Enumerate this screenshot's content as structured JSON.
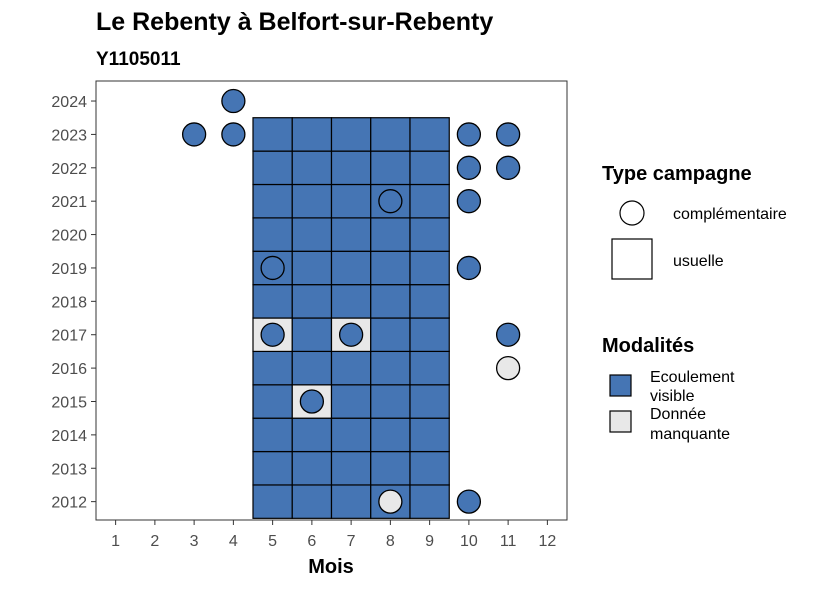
{
  "chart_data": {
    "type": "heatmap",
    "title": "Le Rebenty à Belfort-sur-Rebenty",
    "subtitle": "Y1105011",
    "xlabel": "Mois",
    "ylabel": "",
    "x_ticks": [
      1,
      2,
      3,
      4,
      5,
      6,
      7,
      8,
      9,
      10,
      11,
      12
    ],
    "y_ticks": [
      2012,
      2013,
      2014,
      2015,
      2016,
      2017,
      2018,
      2019,
      2020,
      2021,
      2022,
      2023,
      2024
    ],
    "xlim": [
      0.5,
      12.5
    ],
    "ylim": [
      2011.45,
      2024.6
    ],
    "grid": false,
    "colors": {
      "ecoulement_visible": "#4575b4",
      "donnee_manquante": "#e8e8e8",
      "outline": "#000000"
    },
    "legend": {
      "placement": "right",
      "type_title": "Type campagne",
      "type_items": [
        {
          "label": "complémentaire",
          "shape": "circle"
        },
        {
          "label": "usuelle",
          "shape": "square"
        }
      ],
      "mod_title": "Modalités",
      "mod_items": [
        {
          "label_lines": [
            "Ecoulement",
            "visible"
          ],
          "color": "#4575b4"
        },
        {
          "label_lines": [
            "Donnée",
            "manquante"
          ],
          "color": "#e8e8e8"
        }
      ]
    },
    "squares": {
      "months": [
        5,
        6,
        7,
        8,
        9
      ],
      "years": [
        2012,
        2023
      ],
      "missing": [
        {
          "month": 5,
          "year": 2017
        },
        {
          "month": 7,
          "year": 2017
        },
        {
          "month": 6,
          "year": 2015
        }
      ]
    },
    "circles": [
      {
        "month": 4,
        "year": 2024,
        "modalite": "ecoulement_visible"
      },
      {
        "month": 3,
        "year": 2023,
        "modalite": "ecoulement_visible"
      },
      {
        "month": 4,
        "year": 2023,
        "modalite": "ecoulement_visible"
      },
      {
        "month": 10,
        "year": 2023,
        "modalite": "ecoulement_visible"
      },
      {
        "month": 11,
        "year": 2023,
        "modalite": "ecoulement_visible"
      },
      {
        "month": 10,
        "year": 2022,
        "modalite": "ecoulement_visible"
      },
      {
        "month": 11,
        "year": 2022,
        "modalite": "ecoulement_visible"
      },
      {
        "month": 8,
        "year": 2021,
        "modalite": "ecoulement_visible"
      },
      {
        "month": 10,
        "year": 2021,
        "modalite": "ecoulement_visible"
      },
      {
        "month": 5,
        "year": 2019,
        "modalite": "ecoulement_visible"
      },
      {
        "month": 10,
        "year": 2019,
        "modalite": "ecoulement_visible"
      },
      {
        "month": 5,
        "year": 2017,
        "modalite": "ecoulement_visible"
      },
      {
        "month": 7,
        "year": 2017,
        "modalite": "ecoulement_visible"
      },
      {
        "month": 11,
        "year": 2017,
        "modalite": "ecoulement_visible"
      },
      {
        "month": 11,
        "year": 2016,
        "modalite": "donnee_manquante"
      },
      {
        "month": 6,
        "year": 2015,
        "modalite": "ecoulement_visible"
      },
      {
        "month": 8,
        "year": 2012,
        "modalite": "donnee_manquante"
      },
      {
        "month": 10,
        "year": 2012,
        "modalite": "ecoulement_visible"
      }
    ]
  }
}
